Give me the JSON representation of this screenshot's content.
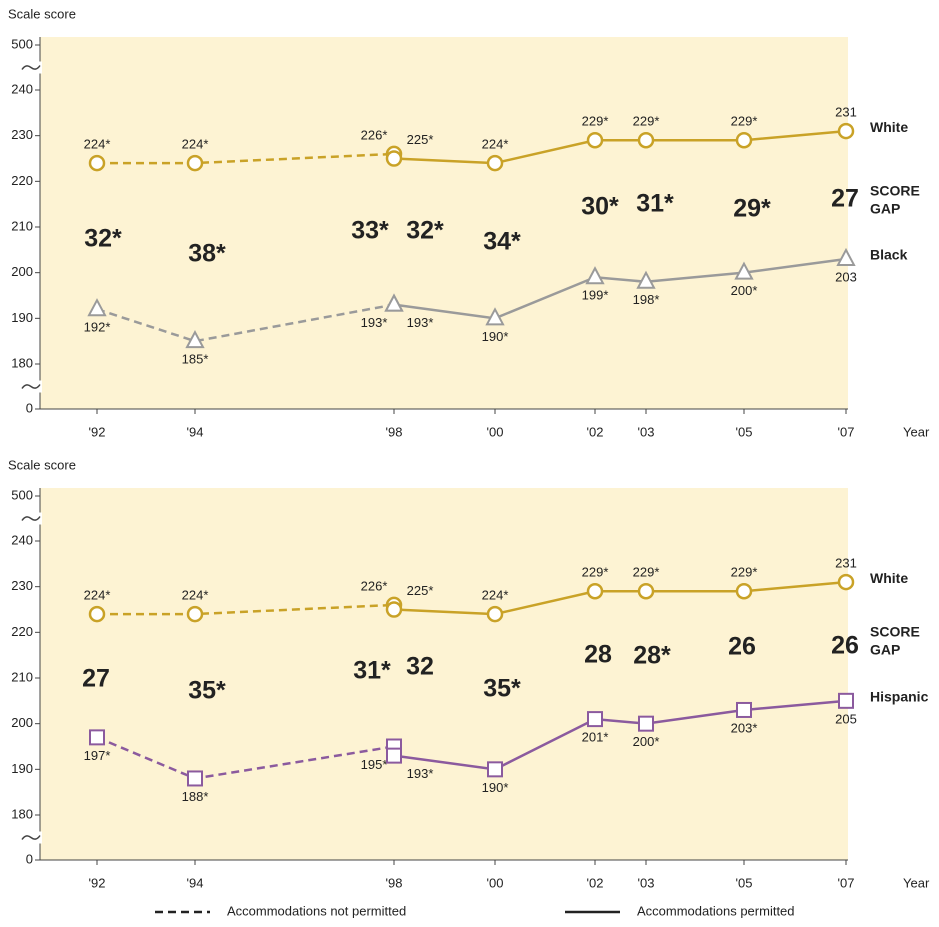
{
  "chart_data": [
    {
      "type": "line",
      "y_label": "Scale score",
      "x_label": "Year",
      "categories": [
        "'92",
        "'94",
        "'98",
        "'00",
        "'02",
        "'03",
        "'05",
        "'07"
      ],
      "ylim": [
        0,
        500
      ],
      "yticks": [
        0,
        180,
        190,
        200,
        210,
        220,
        230,
        240,
        500
      ],
      "series": [
        {
          "name": "White",
          "color": "#c9a227",
          "marker": "circle",
          "values": [
            null,
            null,
            225,
            224,
            229,
            229,
            229,
            231
          ],
          "value_labels": [
            null,
            null,
            "225*",
            "224*",
            "229*",
            "229*",
            "229*",
            "231"
          ],
          "not_permitted": {
            "values": [
              224,
              224,
              226,
              null,
              null,
              null,
              null,
              null
            ],
            "value_labels": [
              "224*",
              "224*",
              "226*",
              null,
              null,
              null,
              null,
              null
            ]
          }
        },
        {
          "name": "Black",
          "color": "#9a9a9a",
          "marker": "triangle",
          "values": [
            null,
            null,
            193,
            190,
            199,
            198,
            200,
            203
          ],
          "value_labels": [
            null,
            null,
            "193*",
            "190*",
            "199*",
            "198*",
            "200*",
            "203"
          ],
          "not_permitted": {
            "values": [
              192,
              185,
              193,
              null,
              null,
              null,
              null,
              null
            ],
            "value_labels": [
              "192*",
              "185*",
              "193*",
              null,
              null,
              null,
              null,
              null
            ]
          }
        }
      ],
      "gaps": [
        "32*",
        "38*",
        "33*",
        "32*",
        "34*",
        "30*",
        "31*",
        "29*",
        "27"
      ],
      "gap_title": [
        "SCORE",
        "GAP"
      ]
    },
    {
      "type": "line",
      "y_label": "Scale score",
      "x_label": "Year",
      "categories": [
        "'92",
        "'94",
        "'98",
        "'00",
        "'02",
        "'03",
        "'05",
        "'07"
      ],
      "ylim": [
        0,
        500
      ],
      "yticks": [
        0,
        180,
        190,
        200,
        210,
        220,
        230,
        240,
        500
      ],
      "series": [
        {
          "name": "White",
          "color": "#c9a227",
          "marker": "circle",
          "values": [
            null,
            null,
            225,
            224,
            229,
            229,
            229,
            231
          ],
          "value_labels": [
            null,
            null,
            "225*",
            "224*",
            "229*",
            "229*",
            "229*",
            "231"
          ],
          "not_permitted": {
            "values": [
              224,
              224,
              226,
              null,
              null,
              null,
              null,
              null
            ],
            "value_labels": [
              "224*",
              "224*",
              "226*",
              null,
              null,
              null,
              null,
              null
            ]
          }
        },
        {
          "name": "Hispanic",
          "color": "#8b5a9e",
          "marker": "square",
          "values": [
            null,
            null,
            193,
            190,
            201,
            200,
            203,
            205
          ],
          "value_labels": [
            null,
            null,
            "193*",
            "190*",
            "201*",
            "200*",
            "203*",
            "205"
          ],
          "not_permitted": {
            "values": [
              197,
              188,
              195,
              null,
              null,
              null,
              null,
              null
            ],
            "value_labels": [
              "197*",
              "188*",
              "195*",
              null,
              null,
              null,
              null,
              null
            ]
          }
        }
      ],
      "gaps": [
        "27",
        "35*",
        "31*",
        "32",
        "35*",
        "28",
        "28*",
        "26",
        "26"
      ],
      "gap_title": [
        "SCORE",
        "GAP"
      ]
    }
  ],
  "legend": [
    {
      "label": "Accommodations not permitted",
      "style": "dashed"
    },
    {
      "label": "Accommodations permitted",
      "style": "solid"
    }
  ]
}
